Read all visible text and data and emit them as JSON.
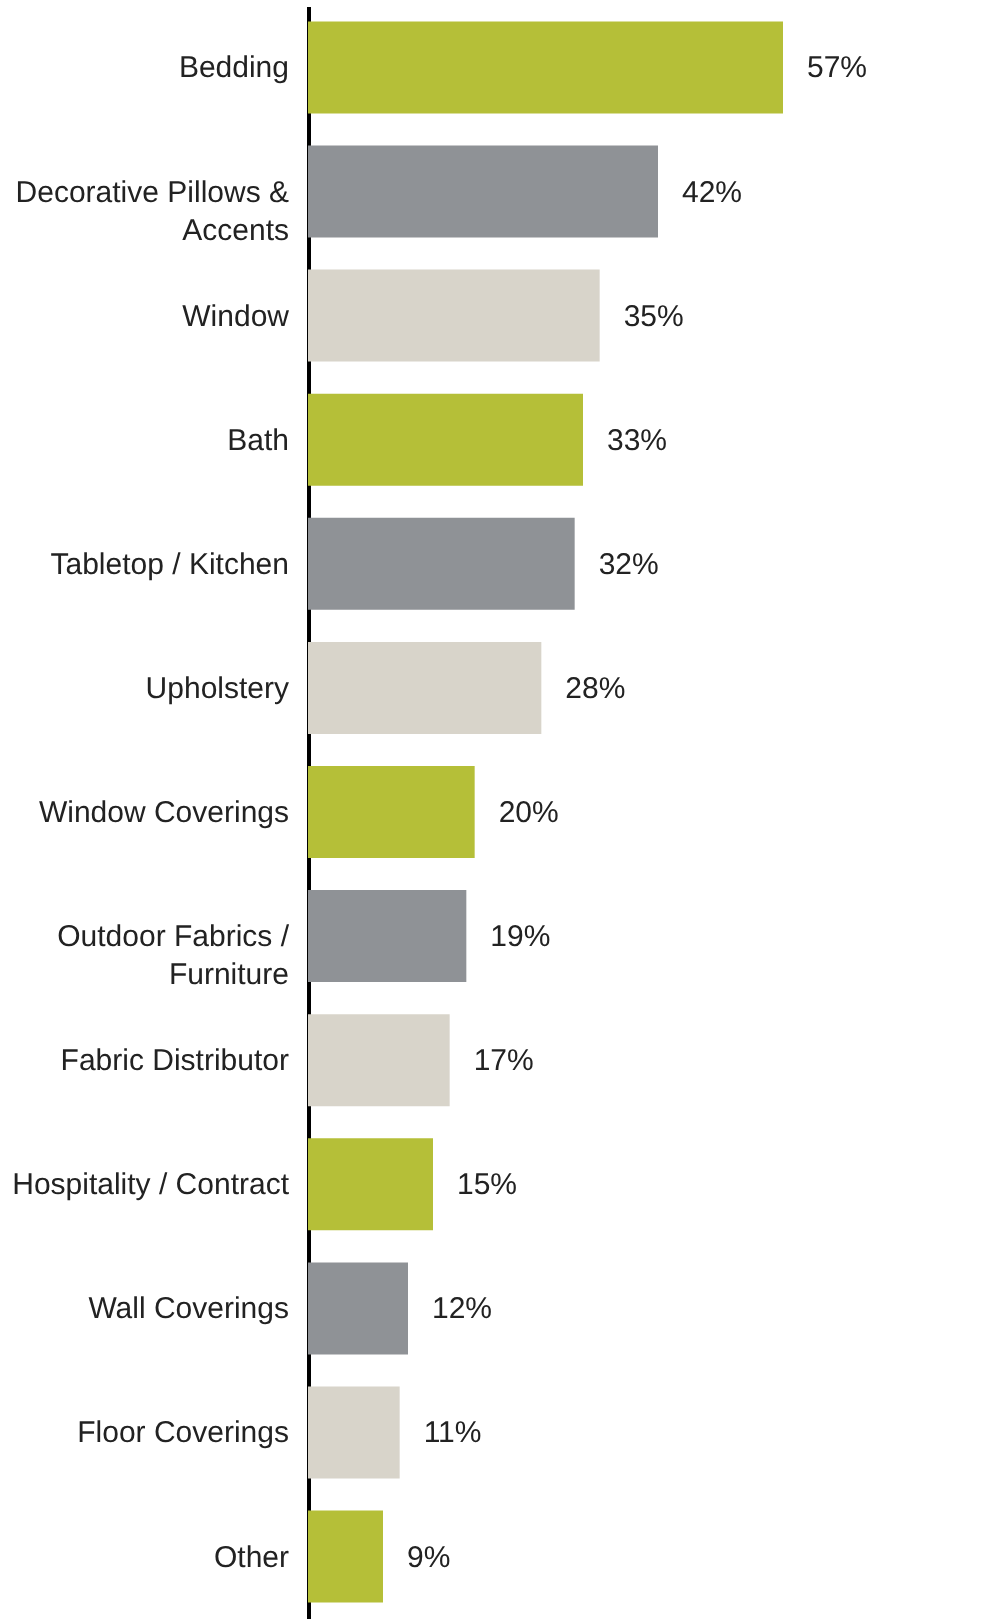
{
  "chart_data": {
    "type": "bar",
    "orientation": "horizontal",
    "data_labels": true,
    "categories": [
      "Bedding",
      "Decorative Pillows & Accents",
      "Window",
      "Bath",
      "Tabletop / Kitchen",
      "Upholstery",
      "Window Coverings",
      "Outdoor Fabrics / Furniture",
      "Fabric Distributor",
      "Hospitality / Contract",
      "Wall Coverings",
      "Floor Coverings",
      "Other"
    ],
    "values": [
      57,
      42,
      35,
      33,
      32,
      28,
      20,
      19,
      17,
      15,
      12,
      11,
      9
    ],
    "value_labels": [
      "57%",
      "42%",
      "35%",
      "33%",
      "32%",
      "28%",
      "20%",
      "19%",
      "17%",
      "15%",
      "12%",
      "11%",
      "9%"
    ],
    "colors": [
      "#b5bf38",
      "#8f9296",
      "#d8d4ca",
      "#b5bf38",
      "#8f9296",
      "#d8d4ca",
      "#b5bf38",
      "#8f9296",
      "#d8d4ca",
      "#b5bf38",
      "#8f9296",
      "#d8d4ca",
      "#b5bf38"
    ]
  }
}
